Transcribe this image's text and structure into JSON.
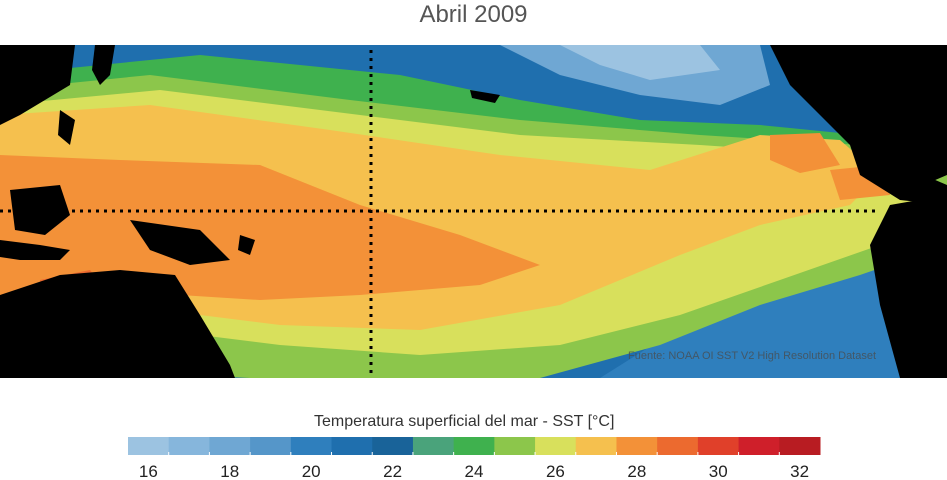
{
  "title": "Abril 2009",
  "source_note": "Fuente: NOAA OI SST V2 High Resolution Dataset",
  "colorbar": {
    "label": "Temperatura superficial del mar - SST  [°C]",
    "ticks": [
      "16",
      "18",
      "20",
      "22",
      "24",
      "26",
      "28",
      "30",
      "32"
    ],
    "colors": [
      "#9cc3e1",
      "#86b6dc",
      "#6fa7d3",
      "#5596c9",
      "#2f7fbd",
      "#1f6fae",
      "#196399",
      "#4aa37b",
      "#3fb14e",
      "#8cc64b",
      "#d8e05c",
      "#f5c04e",
      "#f39138",
      "#ec6a2f",
      "#e0402a",
      "#cf1f2a",
      "#b81c22"
    ]
  },
  "colors": {
    "land": "#000000",
    "warm_pool": "#f39138",
    "hot_core": "#ec6a2f",
    "warm": "#f5c04e",
    "mild": "#d8e05c",
    "green": "#8cc64b",
    "cool_green": "#3fb14e",
    "cool": "#2f7fbd",
    "cold": "#6fa7d3"
  }
}
